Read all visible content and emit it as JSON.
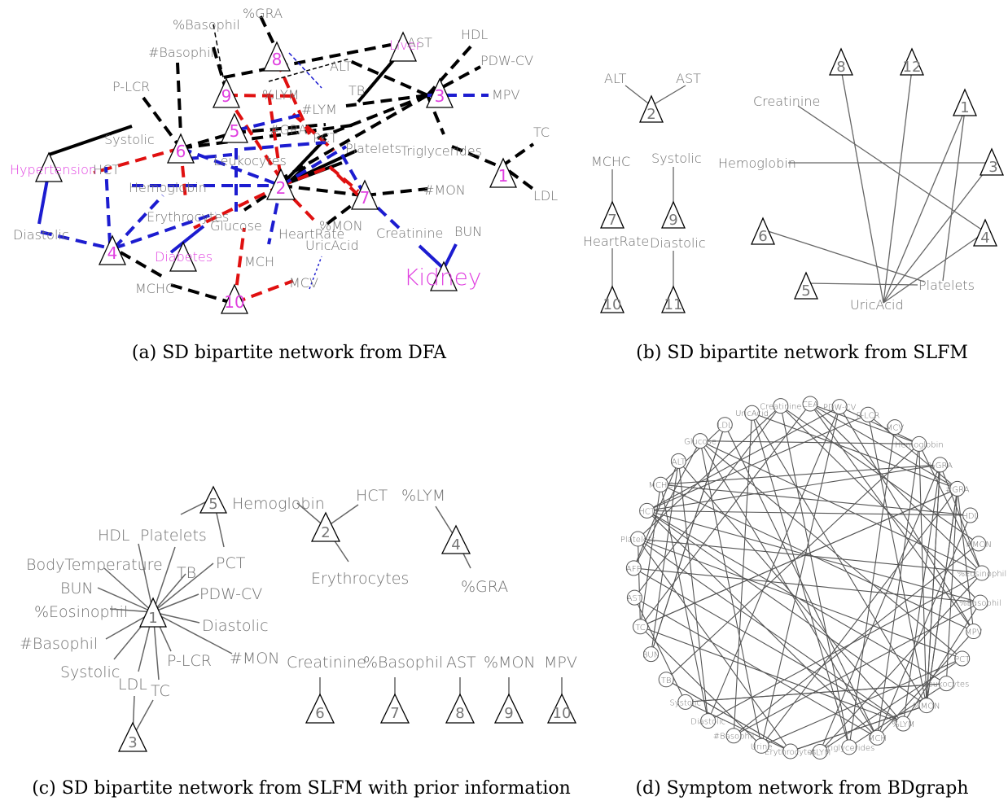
{
  "captions": {
    "a": "(a) SD bipartite network from DFA",
    "b": "(b) SD bipartite network from SLFM",
    "c": "(c) SD bipartite network from SLFM with prior information",
    "d": "(d) Symptom network from BDgraph"
  },
  "panel_a": {
    "labels": {
      "gra_pct": "%GRA",
      "basophil_pct": "%Basophil",
      "basophil_n": "#Basophil",
      "plcr": "P-LCR",
      "lym_pct": "%LYM",
      "lym_n": "#LYM",
      "gra_n": "#GRA",
      "systolic": "Systolic",
      "hypertension": "Hypertension",
      "hct": "HCT",
      "hemoglobin": "Hemoglobin",
      "leukocytes": "Leukocytes",
      "erythrocytes": "Erythrocytes",
      "glucose": "Glucose",
      "diabetes": "Diabetes",
      "diastolic": "Diastolic",
      "mchc": "MCHC",
      "mch": "MCH",
      "mcv": "MCV",
      "heartrate": "HeartRate",
      "mon_pct": "%MON",
      "uricacid": "UricAcid",
      "creatinine": "Creatinine",
      "bun": "BUN",
      "kidney": "Kidney",
      "alt": "ALT",
      "liver": "Liver",
      "ast": "AST",
      "hdl": "HDL",
      "pdwcv": "PDW-CV",
      "mpv": "MPV",
      "tb": "TB",
      "pct": "PCT",
      "platelets": "Platelets",
      "triglycerides": "Triglycerides",
      "mon_n": "#MON",
      "tc": "TC",
      "ldl": "LDL"
    },
    "factors": [
      "1",
      "2",
      "3",
      "4",
      "6",
      "7",
      "8",
      "9",
      "10"
    ],
    "factor5_num": "5",
    "legend_colors": {
      "negative": "#1c1cd0",
      "positive": "#e01010",
      "other": "#000000"
    }
  },
  "panel_b": {
    "labels": {
      "alt": "ALT",
      "ast": "AST",
      "mchc": "MCHC",
      "systolic": "Systolic",
      "heartrate": "HeartRate",
      "diastolic": "Diastolic",
      "creatinine": "Creatinine",
      "hemoglobin": "Hemoglobin",
      "platelets": "Platelets",
      "uricacid": "UricAcid"
    },
    "factors": [
      "1",
      "2",
      "3",
      "4",
      "5",
      "6",
      "7",
      "8",
      "9",
      "10",
      "11",
      "12"
    ]
  },
  "panel_c": {
    "labels": {
      "hemoglobin": "Hemoglobin",
      "hct": "HCT",
      "lym_pct": "%LYM",
      "erythrocytes": "Erythrocytes",
      "gra_pct": "%GRA",
      "hdl": "HDL",
      "platelets": "Platelets",
      "bodytemp": "BodyTemperature",
      "tb": "TB",
      "pct": "PCT",
      "bun": "BUN",
      "pdwcv": "PDW-CV",
      "eosinophil_pct": "%Eosinophil",
      "diastolic": "Diastolic",
      "basophil_n": "#Basophil",
      "mon_n": "#MON",
      "plcr": "P-LCR",
      "systolic": "Systolic",
      "ldl": "LDL",
      "tc": "TC",
      "creatinine": "Creatinine",
      "basophil_pct": "%Basophil",
      "ast": "AST",
      "mon_pct": "%MON",
      "mpv": "MPV"
    },
    "factors": [
      "1",
      "2",
      "3",
      "4",
      "5",
      "6",
      "7",
      "8",
      "9",
      "10"
    ]
  },
  "panel_d": {
    "nodes": [
      "MCV",
      "Hemoglobin",
      "%GRA",
      "#GRA",
      "HDL",
      "#MON",
      "%Eosinophil",
      "%Basophil",
      "MPV",
      "PCT",
      "Leukocytes",
      "%MON",
      "%LYM",
      "MCH",
      "Triglycerides",
      "#LYM",
      "Erythrocytes",
      "Urine",
      "#Basophil",
      "Diastolic",
      "Systolic",
      "TB",
      "BUN",
      "TC",
      "AST",
      "AFP",
      "Platelets",
      "HCT",
      "MCHC",
      "ALT",
      "Glucose",
      "LDL",
      "UricAcid",
      "Creatinine",
      "CEA",
      "PDW-CV",
      "P-LCR"
    ]
  }
}
